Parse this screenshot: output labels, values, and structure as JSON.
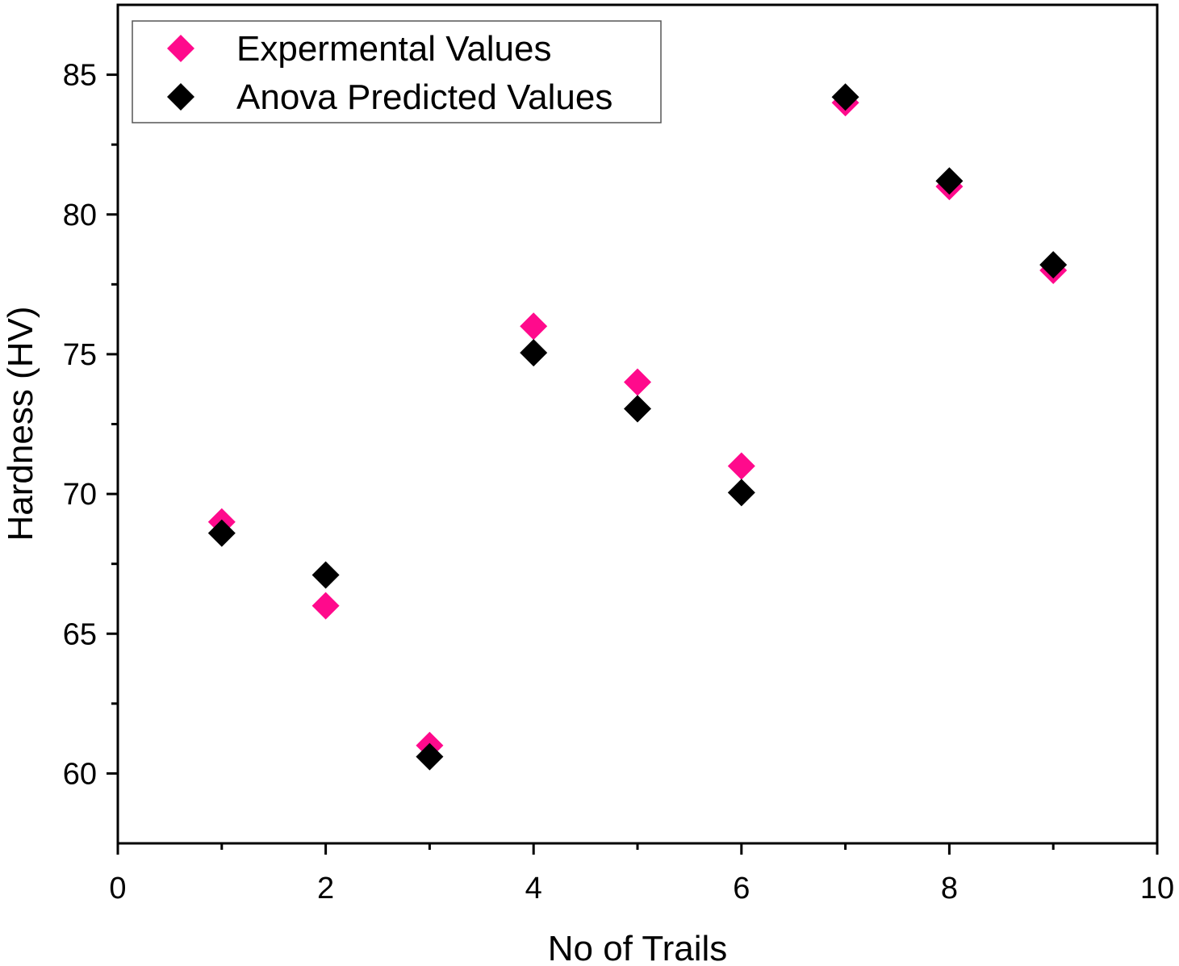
{
  "chart_data": {
    "type": "scatter",
    "title": "",
    "xlabel": "No of  Trails",
    "ylabel": "Hardness (HV)",
    "xlim": [
      0,
      10
    ],
    "ylim": [
      57.5,
      87.5
    ],
    "x_ticks": [
      0,
      2,
      4,
      6,
      8,
      10
    ],
    "y_ticks": [
      60,
      65,
      70,
      75,
      80,
      85
    ],
    "x_tick_labels": [
      "0",
      "2",
      "4",
      "6",
      "8",
      "10"
    ],
    "y_tick_labels": [
      "60",
      "65",
      "70",
      "75",
      "80",
      "85"
    ],
    "grid": false,
    "legend_position": "top-left",
    "marker": "diamond",
    "series": [
      {
        "name": "Expermental Values",
        "color": "#ff0a8c",
        "x": [
          1,
          2,
          3,
          4,
          5,
          6,
          7,
          8,
          9
        ],
        "y": [
          69,
          66,
          61,
          76,
          74,
          71,
          84,
          81,
          78
        ]
      },
      {
        "name": "Anova Predicted Values",
        "color": "#000000",
        "x": [
          1,
          2,
          3,
          4,
          5,
          6,
          7,
          8,
          9
        ],
        "y": [
          68.6,
          67.1,
          60.6,
          75.05,
          73.05,
          70.05,
          84.2,
          81.2,
          78.2
        ]
      }
    ]
  }
}
